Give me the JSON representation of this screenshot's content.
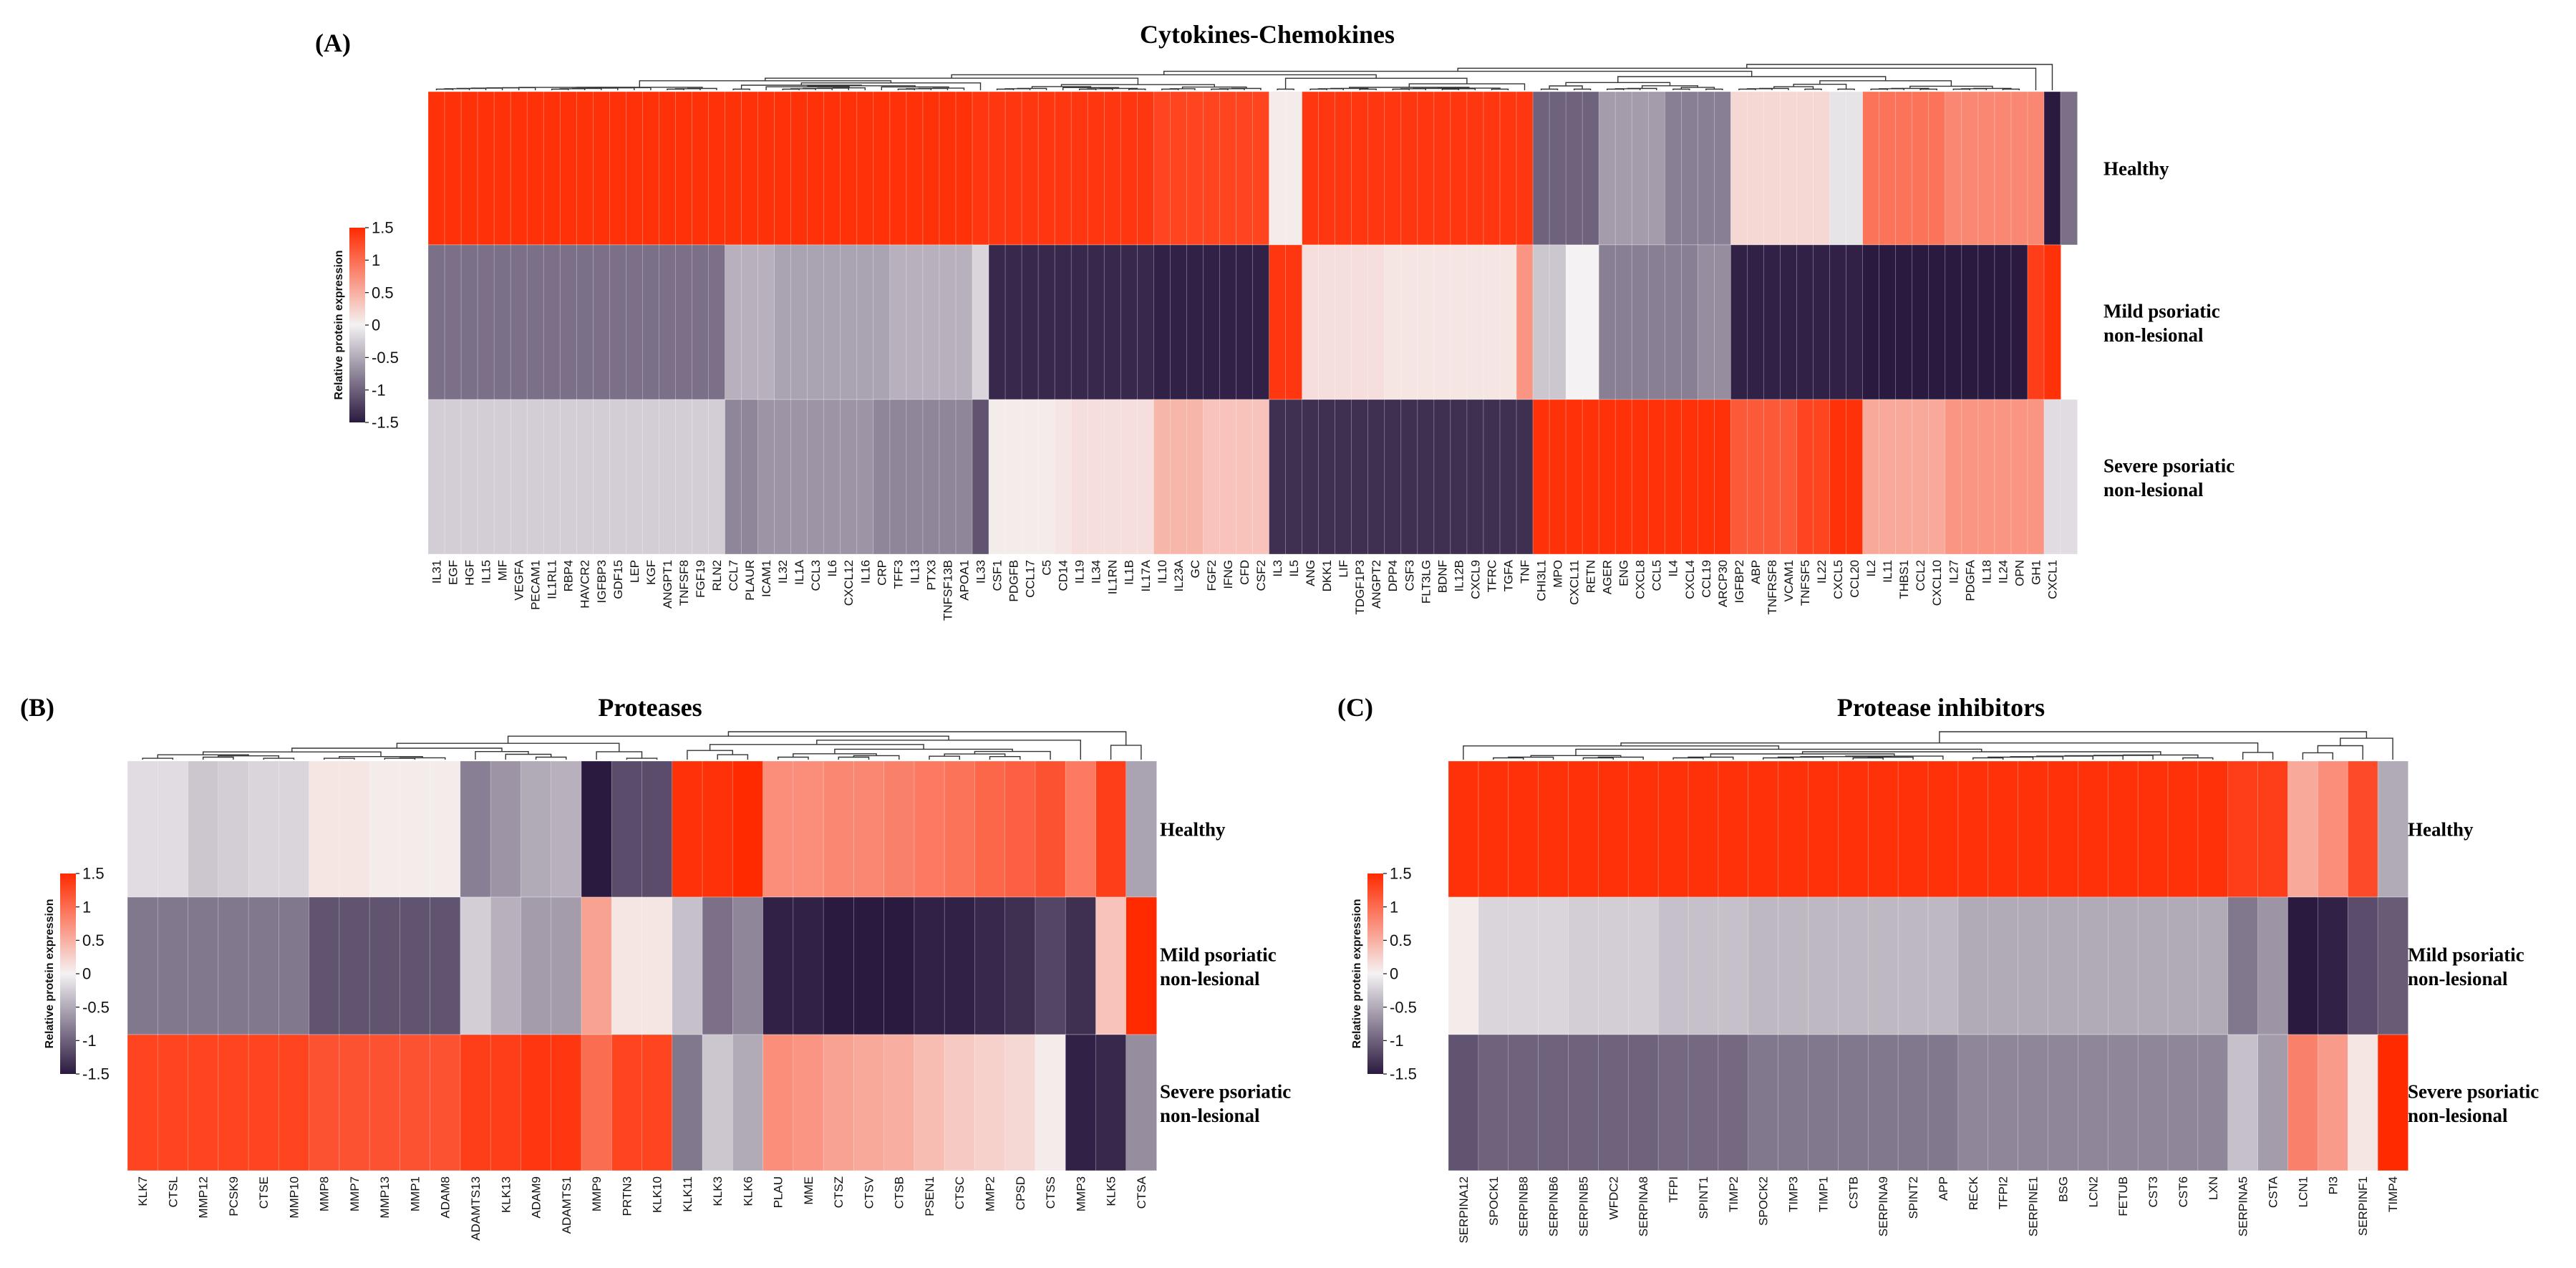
{
  "colors": {
    "low": "#2b1a40",
    "mid": "#f4f2f3",
    "high": "#ff2a00"
  },
  "legend": {
    "title": "Relative protein expression",
    "ticks": [
      "1.5",
      "1",
      "0.5",
      "0",
      "-0.5",
      "-1",
      "-1.5"
    ],
    "range": [
      -1.5,
      1.5
    ]
  },
  "chart_data": [
    {
      "type": "heatmap",
      "panel": "(A)",
      "title": "Cytokines-Chemokines",
      "rows": [
        [
          "Healthy"
        ],
        [
          "Mild psoriatic",
          "non-lesional"
        ],
        [
          "Severe psoriatic",
          "non-lesional"
        ]
      ],
      "columns": [
        "IL31",
        "EGF",
        "HGF",
        "IL15",
        "MIF",
        "VEGFA",
        "PECAM1",
        "IL1RL1",
        "RBP4",
        "HAVCR2",
        "IGFBP3",
        "GDF15",
        "LEP",
        "KGF",
        "ANGPT1",
        "TNFSF8",
        "FGF19",
        "RLN2",
        "CCL7",
        "PLAUR",
        "ICAM1",
        "IL32",
        "IL1A",
        "CCL3",
        "IL6",
        "CXCL12",
        "IL16",
        "CRP",
        "TFF3",
        "IL13",
        "PTX3",
        "TNFSF13B",
        "APOA1",
        "IL33",
        "CSF1",
        "PDGFB",
        "CCL17",
        "C5",
        "CD14",
        "IL19",
        "IL34",
        "IL1RN",
        "IL1B",
        "IL17A",
        "IL10",
        "IL23A",
        "GC",
        "FGF2",
        "IFNG",
        "CFD",
        "CSF2",
        "IL3",
        "IL5",
        "ANG",
        "DKK1",
        "LIF",
        "TDGF1P3",
        "ANGPT2",
        "DPP4",
        "CSF3",
        "FLT3LG",
        "BDNF",
        "IL12B",
        "CXCL9",
        "TFRC",
        "TGFA",
        "TNF",
        "CHI3L1",
        "MPO",
        "CXCL11",
        "RETN",
        "AGER",
        "ENG",
        "CXCL8",
        "CCL5",
        "IL4",
        "CXCL4",
        "CCL19",
        "ARCP30",
        "IGFBP2",
        "ABP",
        "TNFRSF8",
        "VCAM1",
        "TNFSF5",
        "IL22",
        "CXCL5",
        "CCL20",
        "IL2",
        "IL11",
        "THBS1",
        "CCL2",
        "CXCL10",
        "IL27",
        "PDGFA",
        "IL18",
        "IL24",
        "OPN",
        "GH1",
        "CXCL1"
      ],
      "values": [
        [
          1.45,
          1.45,
          1.45,
          1.45,
          1.45,
          1.45,
          1.45,
          1.45,
          1.45,
          1.45,
          1.45,
          1.45,
          1.45,
          1.45,
          1.45,
          1.45,
          1.45,
          1.45,
          1.45,
          1.45,
          1.45,
          1.45,
          1.45,
          1.45,
          1.45,
          1.45,
          1.45,
          1.45,
          1.45,
          1.45,
          1.45,
          1.45,
          1.45,
          1.4,
          1.4,
          1.4,
          1.4,
          1.4,
          1.4,
          1.4,
          1.4,
          1.4,
          1.4,
          1.4,
          1.3,
          1.3,
          1.3,
          1.3,
          1.3,
          1.3,
          1.3,
          0.05,
          0.05,
          1.4,
          1.4,
          1.4,
          1.4,
          1.4,
          1.4,
          1.4,
          1.4,
          1.4,
          1.4,
          1.4,
          1.4,
          1.4,
          1.4,
          -1.0,
          -1.0,
          -1.0,
          -1.0,
          -0.6,
          -0.6,
          -0.6,
          -0.6,
          -0.8,
          -0.8,
          -0.8,
          -0.8,
          0.2,
          0.2,
          0.2,
          0.2,
          0.2,
          0.2,
          -0.1,
          -0.1,
          0.95,
          0.95,
          0.95,
          0.95,
          0.95,
          0.8,
          0.8,
          0.8,
          0.8,
          0.8,
          0.8,
          -1.5,
          -0.9
        ],
        [
          -0.9,
          -0.9,
          -0.9,
          -0.9,
          -0.9,
          -0.9,
          -0.9,
          -0.9,
          -0.9,
          -0.9,
          -0.9,
          -0.9,
          -0.9,
          -0.9,
          -0.9,
          -0.9,
          -0.9,
          -0.9,
          -0.45,
          -0.45,
          -0.45,
          -0.55,
          -0.55,
          -0.55,
          -0.55,
          -0.55,
          -0.55,
          -0.55,
          -0.45,
          -0.45,
          -0.45,
          -0.45,
          -0.45,
          -0.2,
          -1.4,
          -1.4,
          -1.4,
          -1.4,
          -1.4,
          -1.4,
          -1.4,
          -1.4,
          -1.4,
          -1.4,
          -1.45,
          -1.45,
          -1.45,
          -1.45,
          -1.45,
          -1.45,
          -1.45,
          1.4,
          1.4,
          0.15,
          0.15,
          0.15,
          0.15,
          0.15,
          0.1,
          0.1,
          0.1,
          0.1,
          0.1,
          0.1,
          0.1,
          0.1,
          0.7,
          -0.3,
          -0.3,
          0.0,
          0.0,
          -0.8,
          -0.8,
          -0.8,
          -0.8,
          -0.8,
          -0.8,
          -0.7,
          -0.7,
          -1.45,
          -1.45,
          -1.45,
          -1.45,
          -1.45,
          -1.45,
          -1.45,
          -1.45,
          -1.5,
          -1.5,
          -1.5,
          -1.5,
          -1.5,
          -1.5,
          -1.5,
          -1.5,
          -1.5,
          -1.5,
          1.35,
          1.45
        ],
        [
          -0.25,
          -0.25,
          -0.25,
          -0.25,
          -0.25,
          -0.25,
          -0.25,
          -0.25,
          -0.25,
          -0.25,
          -0.25,
          -0.25,
          -0.25,
          -0.25,
          -0.25,
          -0.25,
          -0.25,
          -0.25,
          -0.75,
          -0.75,
          -0.65,
          -0.65,
          -0.65,
          -0.65,
          -0.65,
          -0.65,
          -0.65,
          -0.75,
          -0.75,
          -0.75,
          -0.75,
          -0.75,
          -0.75,
          -1.1,
          0.05,
          0.05,
          0.05,
          0.05,
          0.1,
          0.15,
          0.15,
          0.15,
          0.15,
          0.15,
          0.45,
          0.45,
          0.45,
          0.35,
          0.35,
          0.35,
          0.35,
          -1.35,
          -1.35,
          -1.35,
          -1.35,
          -1.35,
          -1.35,
          -1.35,
          -1.35,
          -1.35,
          -1.35,
          -1.35,
          -1.35,
          -1.35,
          -1.35,
          -1.35,
          -1.35,
          1.45,
          1.45,
          1.45,
          1.45,
          1.45,
          1.45,
          1.45,
          1.45,
          1.45,
          1.45,
          1.45,
          1.45,
          1.15,
          1.15,
          1.15,
          1.15,
          1.3,
          1.3,
          1.45,
          1.45,
          0.55,
          0.55,
          0.55,
          0.55,
          0.55,
          0.7,
          0.7,
          0.7,
          0.7,
          0.7,
          0.7,
          -0.15,
          -0.15
        ]
      ]
    },
    {
      "type": "heatmap",
      "panel": "(B)",
      "title": "Proteases",
      "rows": [
        [
          "Healthy"
        ],
        [
          "Mild psoriatic",
          "non-lesional"
        ],
        [
          "Severe psoriatic",
          "non-lesional"
        ]
      ],
      "columns": [
        "KLK7",
        "CTSL",
        "MMP12",
        "PCSK9",
        "CTSE",
        "MMP10",
        "MMP8",
        "MMP7",
        "MMP13",
        "MMP1",
        "ADAM8",
        "ADAMTS13",
        "KLK13",
        "ADAM9",
        "ADAMTS1",
        "MMP9",
        "PRTN3",
        "KLK10",
        "KLK11",
        "KLK3",
        "KLK6",
        "PLAU",
        "MME",
        "CTSZ",
        "CTSV",
        "CTSB",
        "PSEN1",
        "CTSC",
        "MMP2",
        "CPSD",
        "CTSS",
        "MMP3",
        "KLK5",
        "CTSA"
      ],
      "values": [
        [
          -0.15,
          -0.15,
          -0.3,
          -0.25,
          -0.2,
          -0.2,
          0.1,
          0.1,
          0.05,
          0.05,
          0.05,
          -0.8,
          -0.65,
          -0.5,
          -0.45,
          -1.5,
          -1.15,
          -1.15,
          1.45,
          1.45,
          1.5,
          0.75,
          0.75,
          0.8,
          0.8,
          0.85,
          0.9,
          0.95,
          1.05,
          1.1,
          1.2,
          0.9,
          1.35,
          -0.55
        ],
        [
          -0.85,
          -0.85,
          -0.85,
          -0.85,
          -0.85,
          -0.85,
          -1.1,
          -1.1,
          -1.1,
          -1.1,
          -1.1,
          -0.25,
          -0.45,
          -0.6,
          -0.6,
          0.6,
          0.1,
          0.1,
          -0.35,
          -0.9,
          -0.75,
          -1.45,
          -1.45,
          -1.5,
          -1.5,
          -1.5,
          -1.45,
          -1.45,
          -1.4,
          -1.35,
          -1.2,
          -1.35,
          0.35,
          1.5
        ],
        [
          1.3,
          1.3,
          1.3,
          1.3,
          1.3,
          1.3,
          1.2,
          1.2,
          1.2,
          1.2,
          1.2,
          1.35,
          1.35,
          1.4,
          1.4,
          1.0,
          1.3,
          1.3,
          -0.85,
          -0.3,
          -0.5,
          0.75,
          0.7,
          0.6,
          0.55,
          0.5,
          0.4,
          0.3,
          0.25,
          0.2,
          0.05,
          -1.45,
          -1.4,
          -0.7
        ]
      ]
    },
    {
      "type": "heatmap",
      "panel": "(C)",
      "title": "Protease inhibitors",
      "rows": [
        [
          "Healthy"
        ],
        [
          "Mild psoriatic",
          "non-lesional"
        ],
        [
          "Severe psoriatic",
          "non-lesional"
        ]
      ],
      "columns": [
        "SERPINA12",
        "SPOCK1",
        "SERPINB8",
        "SERPINB6",
        "SERPINB5",
        "WFDC2",
        "SERPINA8",
        "TFPI",
        "SPINT1",
        "TIMP2",
        "SPOCK2",
        "TIMP3",
        "TIMP1",
        "CSTB",
        "SERPINA9",
        "SPINT2",
        "APP",
        "RECK",
        "TFPI2",
        "SERPINE1",
        "BSG",
        "LCN2",
        "FETUB",
        "CST3",
        "CST6",
        "LXN",
        "SERPINA5",
        "CSTA",
        "LCN1",
        "PI3",
        "SERPINF1",
        "TIMP4"
      ],
      "values": [
        [
          1.45,
          1.45,
          1.45,
          1.45,
          1.45,
          1.45,
          1.45,
          1.45,
          1.45,
          1.45,
          1.45,
          1.45,
          1.45,
          1.45,
          1.45,
          1.45,
          1.45,
          1.45,
          1.45,
          1.45,
          1.45,
          1.45,
          1.45,
          1.45,
          1.45,
          1.45,
          1.35,
          1.35,
          0.55,
          0.75,
          1.25,
          -0.5
        ],
        [
          0.05,
          -0.2,
          -0.2,
          -0.2,
          -0.25,
          -0.25,
          -0.25,
          -0.35,
          -0.35,
          -0.35,
          -0.4,
          -0.4,
          -0.4,
          -0.4,
          -0.4,
          -0.4,
          -0.4,
          -0.5,
          -0.5,
          -0.5,
          -0.5,
          -0.5,
          -0.5,
          -0.5,
          -0.5,
          -0.5,
          -0.85,
          -0.65,
          -1.5,
          -1.45,
          -1.15,
          -1.05
        ],
        [
          -1.1,
          -1.0,
          -1.0,
          -1.0,
          -1.0,
          -1.0,
          -1.0,
          -0.95,
          -0.95,
          -0.95,
          -0.85,
          -0.85,
          -0.85,
          -0.85,
          -0.85,
          -0.85,
          -0.85,
          -0.75,
          -0.75,
          -0.75,
          -0.75,
          -0.75,
          -0.75,
          -0.75,
          -0.75,
          -0.75,
          -0.35,
          -0.6,
          0.85,
          0.65,
          0.1,
          1.5
        ]
      ]
    }
  ]
}
